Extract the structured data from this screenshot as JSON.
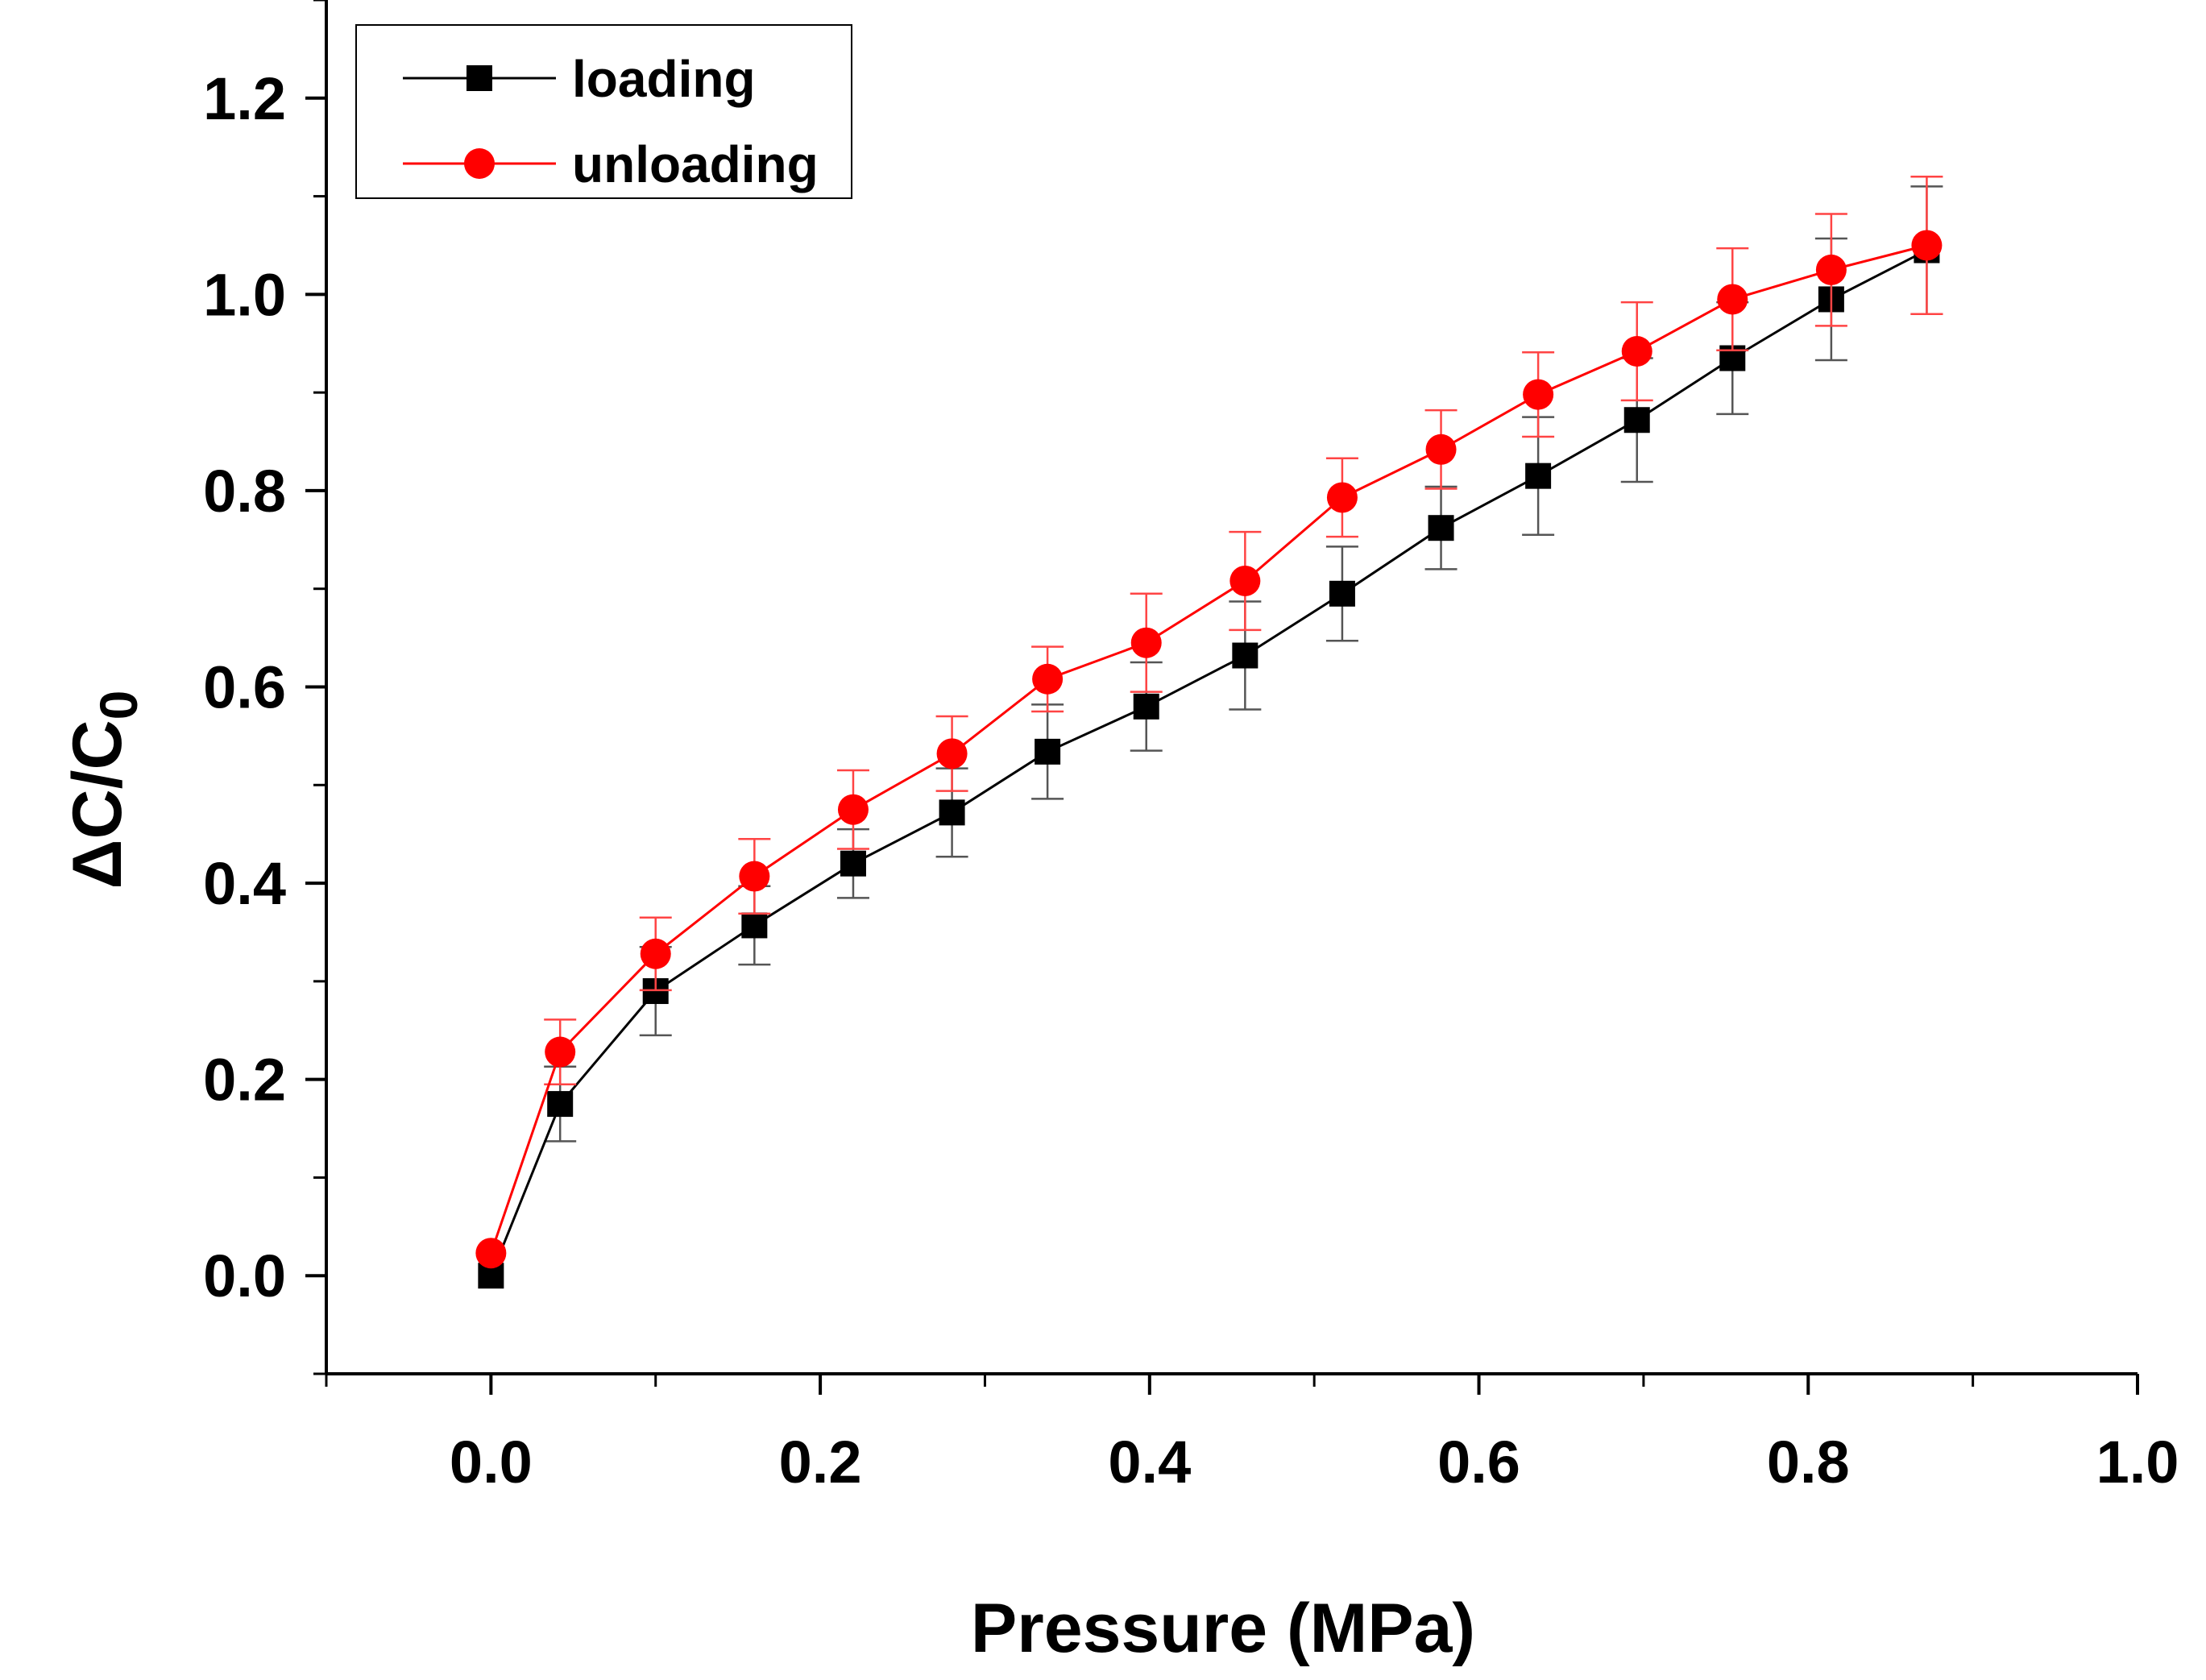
{
  "chart_data": {
    "type": "line",
    "title": "",
    "xlabel": "Pressure (MPa)",
    "ylabel_main": "ΔC/C",
    "ylabel_sub": "0",
    "xlim": [
      -0.1,
      1.0
    ],
    "ylim": [
      -0.1,
      1.3
    ],
    "xticks": [
      0.0,
      0.2,
      0.4,
      0.6,
      0.8,
      1.0
    ],
    "xtick_labels": [
      "0.0",
      "0.2",
      "0.4",
      "0.6",
      "0.8",
      "1.0"
    ],
    "yticks": [
      0.0,
      0.2,
      0.4,
      0.6,
      0.8,
      1.0,
      1.2
    ],
    "ytick_labels": [
      "0.0",
      "0.2",
      "0.4",
      "0.6",
      "0.8",
      "1.0",
      "1.2"
    ],
    "grid": false,
    "legend_position": "top-left",
    "x": [
      0.0,
      0.042,
      0.1,
      0.16,
      0.22,
      0.28,
      0.338,
      0.398,
      0.458,
      0.517,
      0.577,
      0.636,
      0.696,
      0.754,
      0.814,
      0.872
    ],
    "series": [
      {
        "name": "loading",
        "color": "#000000",
        "marker": "square",
        "values": [
          0.0,
          0.175,
          0.29,
          0.357,
          0.42,
          0.472,
          0.534,
          0.58,
          0.632,
          0.695,
          0.762,
          0.815,
          0.872,
          0.935,
          0.995,
          1.045
        ],
        "errors": [
          0.0,
          0.038,
          0.045,
          0.04,
          0.035,
          0.045,
          0.048,
          0.045,
          0.055,
          0.048,
          0.042,
          0.06,
          0.063,
          0.057,
          0.062,
          0.065
        ]
      },
      {
        "name": "unloading",
        "color": "#ff0000",
        "marker": "circle",
        "values": [
          0.023,
          0.228,
          0.328,
          0.407,
          0.475,
          0.532,
          0.608,
          0.645,
          0.708,
          0.793,
          0.842,
          0.898,
          0.942,
          0.995,
          1.025,
          1.05
        ],
        "errors": [
          0.0,
          0.033,
          0.037,
          0.038,
          0.04,
          0.038,
          0.033,
          0.05,
          0.05,
          0.04,
          0.04,
          0.043,
          0.05,
          0.052,
          0.057,
          0.07
        ]
      }
    ]
  }
}
